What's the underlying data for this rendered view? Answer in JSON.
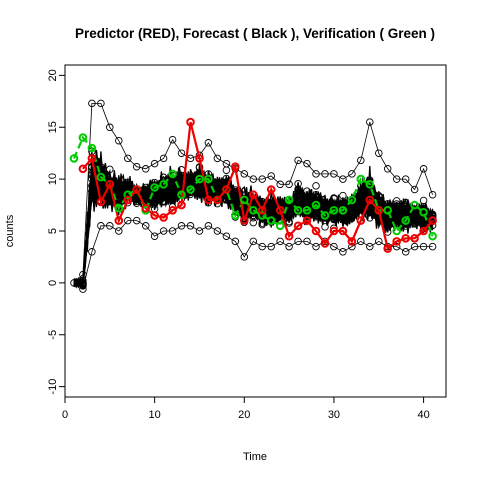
{
  "chart_data": {
    "type": "line",
    "title": "Predictor (RED), Forecast ( Black ), Verification ( Green )",
    "xlabel": "Time",
    "ylabel": "counts",
    "xlim": [
      0,
      42.5
    ],
    "ylim": [
      -11,
      21
    ],
    "xticks": [
      0,
      10,
      20,
      30,
      40
    ],
    "yticks": [
      -10,
      -5,
      0,
      5,
      10,
      15,
      20
    ],
    "grid": false,
    "series": [
      {
        "role": "predictor",
        "color": "#ee0000",
        "style": "solid",
        "marker": "open-circle",
        "x": [
          2,
          3,
          4,
          5,
          6,
          7,
          8,
          9,
          10,
          11,
          12,
          13,
          14,
          15,
          16,
          17,
          18,
          19,
          20,
          21,
          22,
          23,
          24,
          25,
          26,
          27,
          28,
          29,
          30,
          31,
          32,
          33,
          34,
          35,
          36,
          37,
          38,
          39,
          40,
          41
        ],
        "y": [
          11,
          12,
          7.8,
          9.5,
          6,
          8,
          9,
          7.2,
          6.5,
          6.3,
          7,
          7.5,
          15.5,
          12,
          8,
          8,
          9,
          11.2,
          6,
          8.5,
          7,
          9,
          7,
          4.5,
          5.5,
          6,
          5,
          3.8,
          5,
          5,
          4,
          6,
          8,
          7,
          3.3,
          4,
          4.3,
          4.3,
          5,
          6
        ]
      },
      {
        "role": "verification",
        "color": "#00cc00",
        "style": "dashed",
        "marker": "open-circle",
        "x": [
          1,
          2,
          3,
          4,
          5,
          6,
          7,
          8,
          9,
          10,
          11,
          12,
          13,
          14,
          15,
          16,
          17,
          18,
          19,
          20,
          21,
          22,
          23,
          24,
          25,
          26,
          27,
          28,
          29,
          30,
          31,
          32,
          33,
          34,
          35,
          36,
          37,
          38,
          39,
          40,
          41
        ],
        "y": [
          12,
          14,
          13,
          10.2,
          9.5,
          7.2,
          8.5,
          9,
          7,
          9.2,
          9.5,
          10.5,
          8.5,
          9,
          10,
          10,
          8,
          9,
          6.5,
          8,
          7,
          6.5,
          6,
          5.5,
          8,
          7,
          7,
          7.5,
          6.5,
          7,
          7,
          8,
          10,
          9.5,
          7,
          7,
          5,
          6,
          7.5,
          6.8,
          4.5
        ]
      },
      {
        "role": "forecast-mean",
        "color": "#000000",
        "x": [
          1,
          2,
          3,
          4,
          5,
          6,
          7,
          8,
          9,
          10,
          11,
          12,
          13,
          14,
          15,
          16,
          17,
          18,
          19,
          20,
          21,
          22,
          23,
          24,
          25,
          26,
          27,
          28,
          29,
          30,
          31,
          32,
          33,
          34,
          35,
          36,
          37,
          38,
          39,
          40,
          41
        ],
        "y": [
          0,
          0,
          10,
          10,
          9,
          8.5,
          9,
          8.5,
          8.5,
          8.5,
          9,
          9,
          9.5,
          9.5,
          9.5,
          9,
          9,
          9,
          8,
          7.5,
          7.5,
          7,
          7,
          7,
          7,
          8,
          7.5,
          7.5,
          7,
          7,
          7,
          7,
          8,
          8.5,
          7,
          6.5,
          6.5,
          6.5,
          6.5,
          6.5,
          6
        ]
      },
      {
        "role": "forecast-spread",
        "x": [
          1,
          2,
          3,
          4,
          5,
          6,
          7,
          8,
          9,
          10,
          11,
          12,
          13,
          14,
          15,
          16,
          17,
          18,
          19,
          20,
          21,
          22,
          23,
          24,
          25,
          26,
          27,
          28,
          29,
          30,
          31,
          32,
          33,
          34,
          35,
          36,
          37,
          38,
          39,
          40,
          41
        ],
        "low": [
          0,
          -0.6,
          3,
          5.5,
          5.5,
          5,
          6,
          6,
          5.5,
          4.5,
          5,
          5,
          5.5,
          5.5,
          5,
          5.5,
          5,
          4.5,
          4,
          2.5,
          4,
          3.5,
          3.5,
          4,
          3.5,
          4,
          4,
          3.5,
          4,
          3.5,
          3,
          3.5,
          4,
          3.5,
          4,
          3.5,
          3.5,
          3,
          3.5,
          3.5,
          3.5
        ],
        "high": [
          0,
          0.8,
          17.3,
          17.3,
          15,
          13.7,
          12,
          11.2,
          11,
          11.5,
          12,
          13.8,
          12.5,
          12,
          12.3,
          13.5,
          12,
          11.5,
          11,
          10.5,
          10,
          10,
          10.3,
          9.5,
          9.5,
          11.8,
          11.5,
          10.5,
          10.5,
          10.5,
          10,
          10.5,
          11.8,
          15.5,
          12.5,
          11,
          10,
          10,
          9,
          11,
          8.5
        ]
      }
    ]
  }
}
